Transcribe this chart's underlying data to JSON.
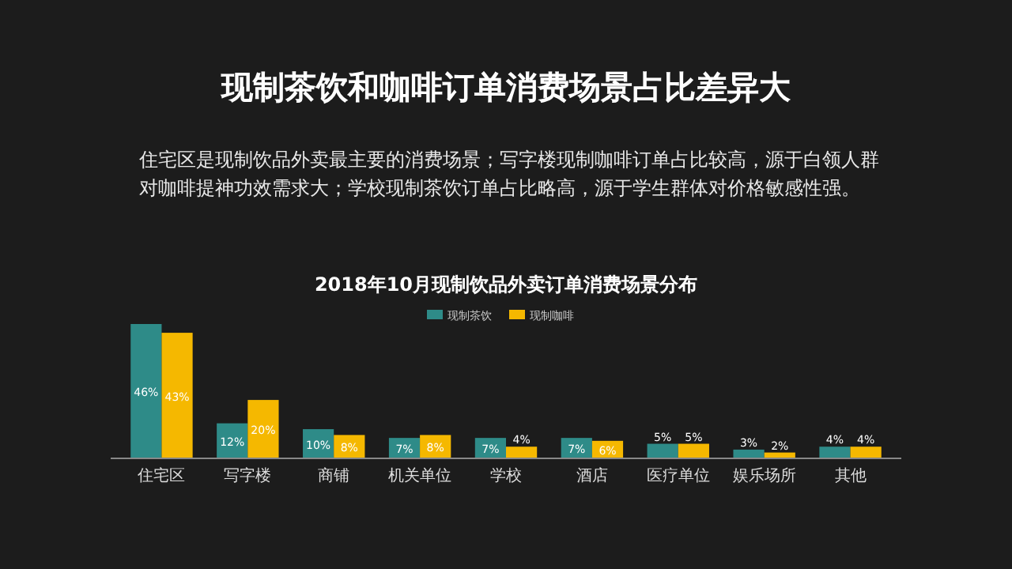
{
  "chart_data": {
    "type": "bar",
    "title": "现制茶饮和咖啡订单消费场景占比差异大",
    "subtitle": "住宅区是现制饮品外卖最主要的消费场景；写字楼现制咖啡订单占比较高，源于白领人群对咖啡提神功效需求大；学校现制茶饮订单占比略高，源于学生群体对价格敏感性强。",
    "annotations": [
      "2018年10月现制饮品外卖订单消费场景分布"
    ],
    "categories": [
      "住宅区",
      "写字楼",
      "商铺",
      "机关单位",
      "学校",
      "酒店",
      "医疗单位",
      "娱乐场所",
      "其他"
    ],
    "series": [
      {
        "name": "现制茶饮",
        "color": "#2e8b88",
        "values": [
          46,
          12,
          10,
          7,
          7,
          7,
          5,
          3,
          4
        ],
        "value_labels": [
          "46%",
          "12%",
          "10%",
          "7%",
          "7%",
          "7%",
          "5%",
          "3%",
          "4%"
        ]
      },
      {
        "name": "现制咖啡",
        "color": "#f5b800",
        "values": [
          43,
          20,
          8,
          8,
          4,
          6,
          5,
          2,
          4
        ],
        "value_labels": [
          "43%",
          "20%",
          "8%",
          "8%",
          "4%",
          "6%",
          "5%",
          "2%",
          "4%"
        ]
      }
    ],
    "legend": "top"
  }
}
